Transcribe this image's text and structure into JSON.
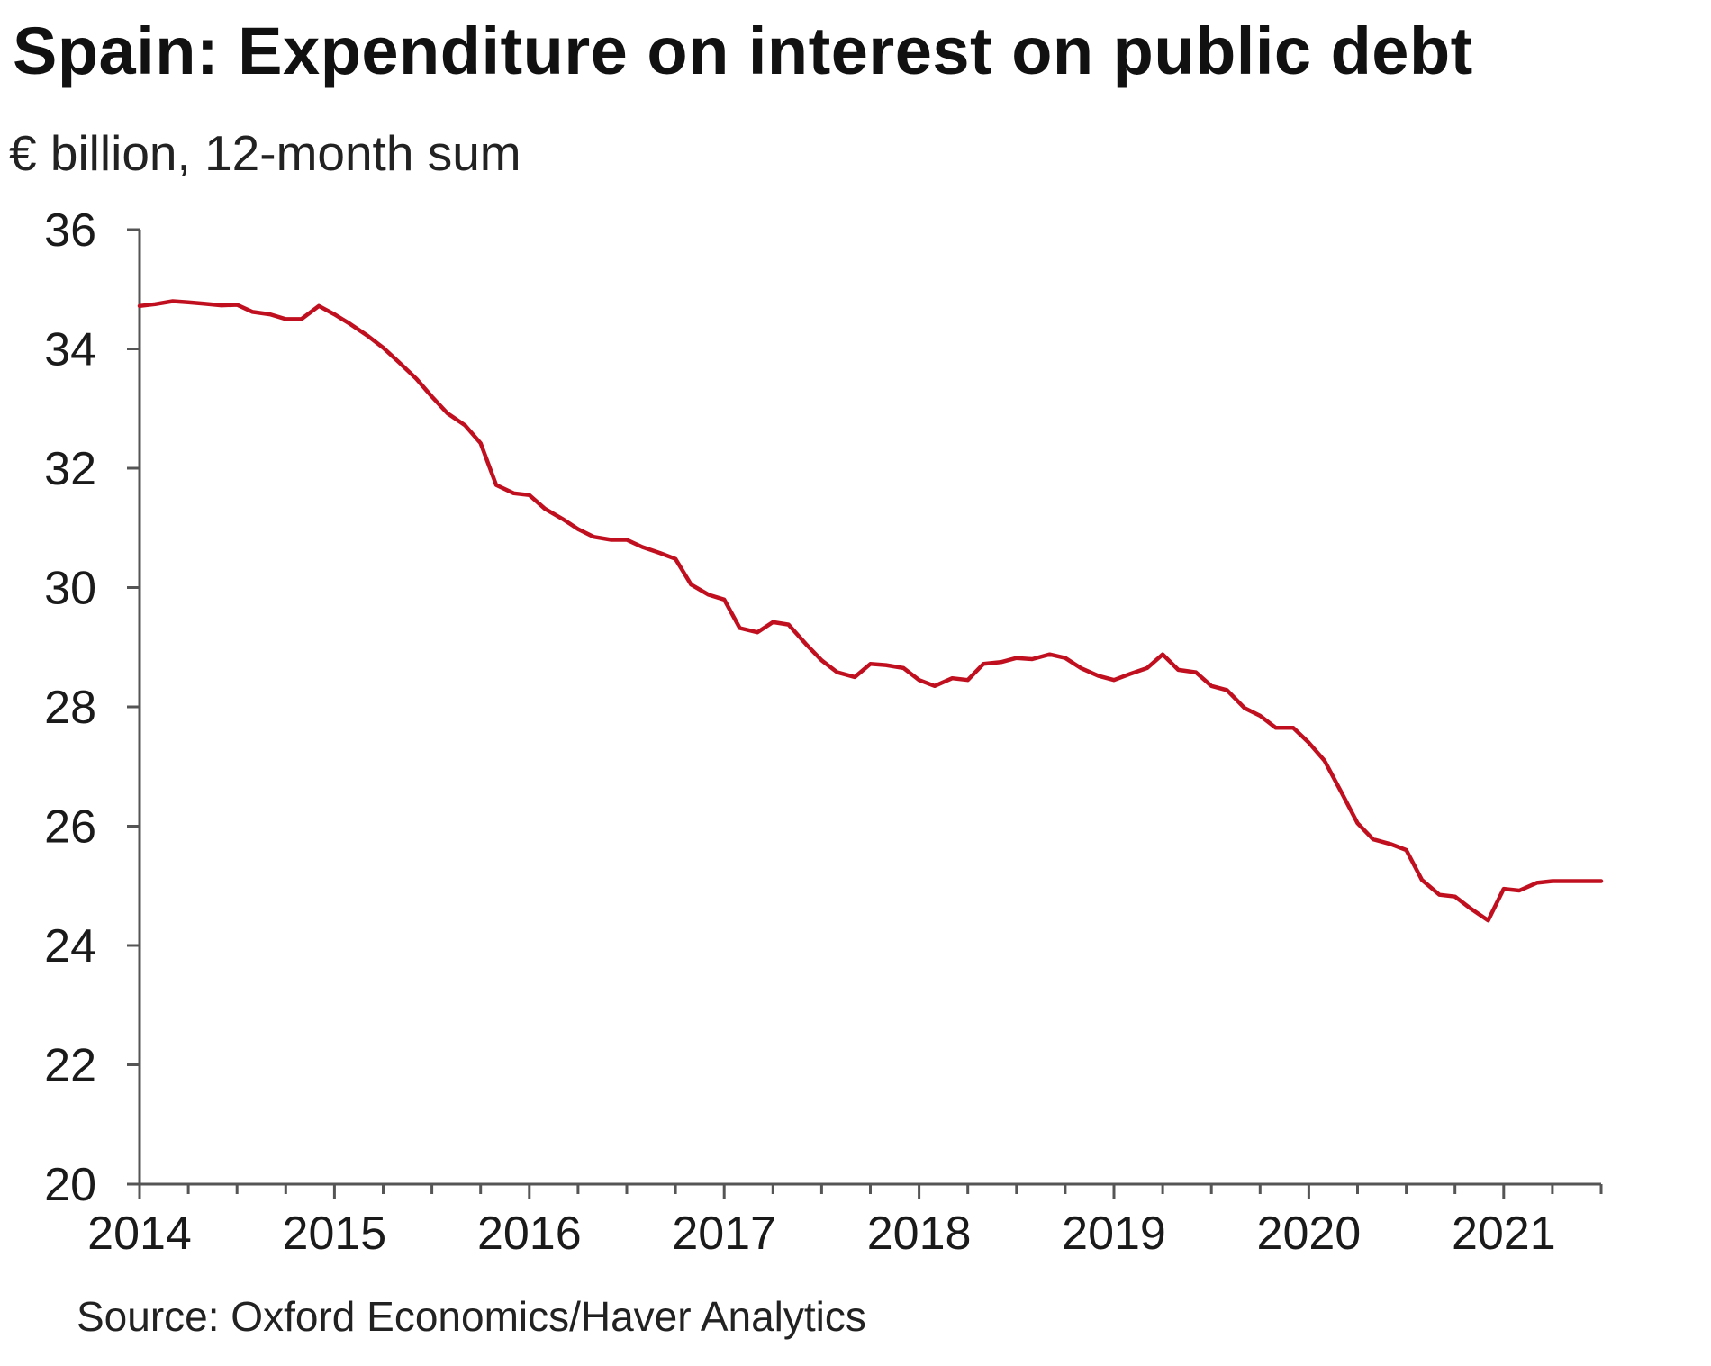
{
  "chart_data": {
    "type": "line",
    "title": "Spain: Expenditure on interest on public debt",
    "subtitle": "€ billion, 12-month sum",
    "source": "Source: Oxford Economics/Haver Analytics",
    "xlabel": "",
    "ylabel": "€ billion, 12-month sum",
    "xlim": [
      2014.0,
      2021.5
    ],
    "ylim": [
      20,
      36
    ],
    "y_ticks": [
      20,
      22,
      24,
      26,
      28,
      30,
      32,
      34,
      36
    ],
    "x_ticks": [
      2014,
      2015,
      2016,
      2017,
      2018,
      2019,
      2020,
      2021
    ],
    "grid": false,
    "legend": "none",
    "series": [
      {
        "name": "Expenditure on interest on public debt",
        "color": "#c0101f",
        "points": [
          [
            2014.0,
            34.72
          ],
          [
            2014.08,
            34.75
          ],
          [
            2014.17,
            34.8
          ],
          [
            2014.25,
            34.78
          ],
          [
            2014.33,
            34.76
          ],
          [
            2014.42,
            34.73
          ],
          [
            2014.5,
            34.74
          ],
          [
            2014.58,
            34.62
          ],
          [
            2014.67,
            34.58
          ],
          [
            2014.75,
            34.5
          ],
          [
            2014.83,
            34.5
          ],
          [
            2014.92,
            34.72
          ],
          [
            2015.0,
            34.58
          ],
          [
            2015.08,
            34.42
          ],
          [
            2015.17,
            34.22
          ],
          [
            2015.25,
            34.02
          ],
          [
            2015.33,
            33.78
          ],
          [
            2015.42,
            33.5
          ],
          [
            2015.5,
            33.2
          ],
          [
            2015.58,
            32.92
          ],
          [
            2015.67,
            32.72
          ],
          [
            2015.75,
            32.42
          ],
          [
            2015.83,
            31.72
          ],
          [
            2015.92,
            31.58
          ],
          [
            2016.0,
            31.55
          ],
          [
            2016.08,
            31.32
          ],
          [
            2016.17,
            31.15
          ],
          [
            2016.25,
            30.98
          ],
          [
            2016.33,
            30.85
          ],
          [
            2016.42,
            30.8
          ],
          [
            2016.5,
            30.8
          ],
          [
            2016.58,
            30.68
          ],
          [
            2016.67,
            30.58
          ],
          [
            2016.75,
            30.48
          ],
          [
            2016.83,
            30.05
          ],
          [
            2016.92,
            29.88
          ],
          [
            2017.0,
            29.8
          ],
          [
            2017.08,
            29.32
          ],
          [
            2017.17,
            29.25
          ],
          [
            2017.25,
            29.42
          ],
          [
            2017.33,
            29.38
          ],
          [
            2017.42,
            29.05
          ],
          [
            2017.5,
            28.78
          ],
          [
            2017.58,
            28.58
          ],
          [
            2017.67,
            28.5
          ],
          [
            2017.75,
            28.72
          ],
          [
            2017.83,
            28.7
          ],
          [
            2017.92,
            28.65
          ],
          [
            2018.0,
            28.45
          ],
          [
            2018.08,
            28.35
          ],
          [
            2018.17,
            28.48
          ],
          [
            2018.25,
            28.45
          ],
          [
            2018.33,
            28.72
          ],
          [
            2018.42,
            28.75
          ],
          [
            2018.5,
            28.82
          ],
          [
            2018.58,
            28.8
          ],
          [
            2018.67,
            28.88
          ],
          [
            2018.75,
            28.82
          ],
          [
            2018.83,
            28.65
          ],
          [
            2018.92,
            28.52
          ],
          [
            2019.0,
            28.45
          ],
          [
            2019.08,
            28.55
          ],
          [
            2019.17,
            28.65
          ],
          [
            2019.25,
            28.88
          ],
          [
            2019.33,
            28.62
          ],
          [
            2019.42,
            28.58
          ],
          [
            2019.5,
            28.35
          ],
          [
            2019.58,
            28.28
          ],
          [
            2019.67,
            27.98
          ],
          [
            2019.75,
            27.85
          ],
          [
            2019.83,
            27.65
          ],
          [
            2019.92,
            27.65
          ],
          [
            2020.0,
            27.4
          ],
          [
            2020.08,
            27.1
          ],
          [
            2020.17,
            26.55
          ],
          [
            2020.25,
            26.05
          ],
          [
            2020.33,
            25.78
          ],
          [
            2020.42,
            25.7
          ],
          [
            2020.5,
            25.6
          ],
          [
            2020.58,
            25.1
          ],
          [
            2020.67,
            24.85
          ],
          [
            2020.75,
            24.82
          ],
          [
            2020.83,
            24.62
          ],
          [
            2020.92,
            24.42
          ],
          [
            2021.0,
            24.95
          ],
          [
            2021.08,
            24.92
          ],
          [
            2021.17,
            25.05
          ],
          [
            2021.25,
            25.08
          ],
          [
            2021.33,
            25.08
          ],
          [
            2021.5,
            25.08
          ]
        ]
      }
    ]
  }
}
